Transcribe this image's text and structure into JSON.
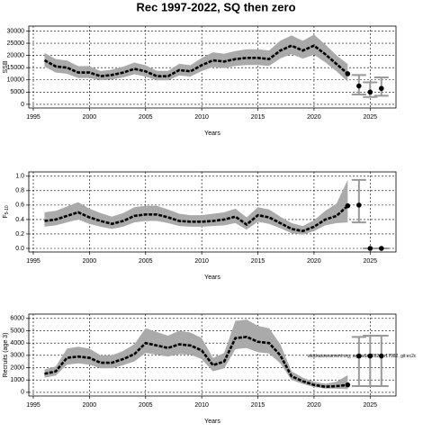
{
  "chart_data": [
    {
      "type": "line",
      "title": "Rec 1997-2022, SQ then zero",
      "xlabel": "Years",
      "ylabel": [
        "SSB"
      ],
      "xlim": [
        1994.6,
        2027.3
      ],
      "xticks": [
        1995,
        2000,
        2005,
        2010,
        2015,
        2020,
        2025
      ],
      "ylim": [
        -1500,
        32000
      ],
      "yticks": [
        0,
        5000,
        10000,
        15000,
        20000,
        25000,
        30000
      ],
      "grid": true,
      "x": [
        1996,
        1997,
        1998,
        1999,
        2000,
        2001,
        2002,
        2003,
        2004,
        2005,
        2006,
        2007,
        2008,
        2009,
        2010,
        2011,
        2012,
        2013,
        2014,
        2015,
        2016,
        2017,
        2018,
        2019,
        2020,
        2021,
        2022,
        2023
      ],
      "series": [
        {
          "color": "#000000",
          "values": [
            18000,
            15500,
            15000,
            13000,
            13000,
            11500,
            12000,
            13000,
            14500,
            13500,
            11500,
            11500,
            14000,
            13500,
            16000,
            18000,
            17500,
            18500,
            19000,
            19000,
            18500,
            22000,
            24000,
            22000,
            24000,
            20500,
            16500,
            12500
          ],
          "lower": [
            15500,
            13000,
            12500,
            10800,
            10800,
            9800,
            10200,
            11000,
            12300,
            11400,
            9800,
            9800,
            11800,
            11400,
            13600,
            15300,
            14800,
            15700,
            16100,
            16100,
            15700,
            18800,
            20500,
            18700,
            20300,
            17200,
            13500,
            9300
          ],
          "upper": [
            21000,
            18500,
            17900,
            15600,
            15600,
            13600,
            14200,
            15400,
            17100,
            16000,
            13700,
            13700,
            16600,
            16000,
            19000,
            21300,
            20700,
            21800,
            22500,
            22500,
            22000,
            26000,
            28200,
            26000,
            28500,
            24500,
            20000,
            16500
          ]
        }
      ],
      "points": {
        "x": [
          2024,
          2025,
          2026
        ],
        "values": [
          7500,
          5000,
          6500
        ],
        "lower": [
          4000,
          3000,
          3500
        ],
        "upper": [
          12000,
          9000,
          11000
        ]
      }
    },
    {
      "type": "line",
      "xlabel": "Years",
      "ylabel": [
        "F",
        "5-10"
      ],
      "xlim": [
        1994.6,
        2027.3
      ],
      "xticks": [
        1995,
        2000,
        2005,
        2010,
        2015,
        2020,
        2025
      ],
      "ylim": [
        -0.05,
        1.06
      ],
      "yticks": [
        {
          "value": 0,
          "label": "0.0"
        },
        0.2,
        0.4,
        0.6,
        0.8,
        {
          "value": 1,
          "label": "1.0"
        }
      ],
      "grid": true,
      "x": [
        1996,
        1997,
        1998,
        1999,
        2000,
        2001,
        2002,
        2003,
        2004,
        2005,
        2006,
        2007,
        2008,
        2009,
        2010,
        2011,
        2012,
        2013,
        2014,
        2015,
        2016,
        2017,
        2018,
        2019,
        2020,
        2021,
        2022,
        2023
      ],
      "series": [
        {
          "color": "#000000",
          "values": [
            0.38,
            0.4,
            0.45,
            0.5,
            0.43,
            0.38,
            0.34,
            0.38,
            0.45,
            0.47,
            0.47,
            0.43,
            0.38,
            0.37,
            0.37,
            0.38,
            0.4,
            0.44,
            0.33,
            0.46,
            0.43,
            0.35,
            0.27,
            0.24,
            0.3,
            0.4,
            0.45,
            0.59
          ],
          "lower": [
            0.3,
            0.32,
            0.36,
            0.4,
            0.34,
            0.3,
            0.27,
            0.3,
            0.36,
            0.38,
            0.38,
            0.35,
            0.31,
            0.3,
            0.3,
            0.31,
            0.32,
            0.35,
            0.26,
            0.37,
            0.34,
            0.28,
            0.21,
            0.19,
            0.24,
            0.32,
            0.35,
            0.36
          ],
          "upper": [
            0.5,
            0.52,
            0.58,
            0.64,
            0.55,
            0.49,
            0.44,
            0.49,
            0.57,
            0.59,
            0.59,
            0.54,
            0.48,
            0.46,
            0.46,
            0.48,
            0.5,
            0.55,
            0.43,
            0.57,
            0.54,
            0.44,
            0.35,
            0.31,
            0.39,
            0.52,
            0.62,
            0.95
          ]
        }
      ],
      "points": {
        "x": [
          2024,
          2025,
          2026
        ],
        "values": [
          0.6,
          0,
          0
        ],
        "lower": [
          0.36,
          0,
          0
        ],
        "upper": [
          0.95,
          0,
          0
        ]
      }
    },
    {
      "type": "line",
      "xlabel": "Years",
      "ylabel": [
        "Recruits (age 3)"
      ],
      "annotation": "stockassessment.org, wg_w3a_2024, r17932, git:ec2c",
      "xlim": [
        1994.6,
        2027.3
      ],
      "xticks": [
        1995,
        2000,
        2005,
        2010,
        2015,
        2020,
        2025
      ],
      "ylim": [
        -300,
        6350
      ],
      "yticks": [
        0,
        1000,
        2000,
        3000,
        4000,
        5000,
        6000
      ],
      "grid": true,
      "x": [
        1996,
        1997,
        1998,
        1999,
        2000,
        2001,
        2002,
        2003,
        2004,
        2005,
        2006,
        2007,
        2008,
        2009,
        2010,
        2011,
        2012,
        2013,
        2014,
        2015,
        2016,
        2017,
        2018,
        2019,
        2020,
        2021,
        2022,
        2023
      ],
      "series": [
        {
          "color": "#000000",
          "values": [
            1500,
            1700,
            2800,
            2900,
            2800,
            2400,
            2400,
            2700,
            3100,
            4000,
            3800,
            3600,
            3900,
            3800,
            3400,
            2200,
            2500,
            4400,
            4500,
            4100,
            4000,
            3000,
            1300,
            900,
            600,
            450,
            500,
            600
          ],
          "lower": [
            1200,
            1350,
            2250,
            2350,
            2250,
            1950,
            1950,
            2200,
            2500,
            3200,
            3050,
            2900,
            3100,
            3050,
            2700,
            1700,
            1950,
            3500,
            3600,
            3250,
            3150,
            2350,
            1000,
            680,
            430,
            300,
            300,
            250
          ],
          "upper": [
            1850,
            2100,
            3550,
            3700,
            3550,
            3000,
            3000,
            3350,
            3900,
            5200,
            4900,
            4600,
            5000,
            4850,
            4400,
            2800,
            3200,
            5800,
            5900,
            5400,
            5200,
            3900,
            1700,
            1200,
            850,
            700,
            850,
            1400
          ]
        }
      ],
      "points": {
        "x": [
          2024,
          2025,
          2026
        ],
        "values": [
          2950,
          2950,
          2950
        ],
        "lower": [
          500,
          500,
          500
        ],
        "upper": [
          4500,
          4600,
          4600
        ]
      }
    }
  ]
}
